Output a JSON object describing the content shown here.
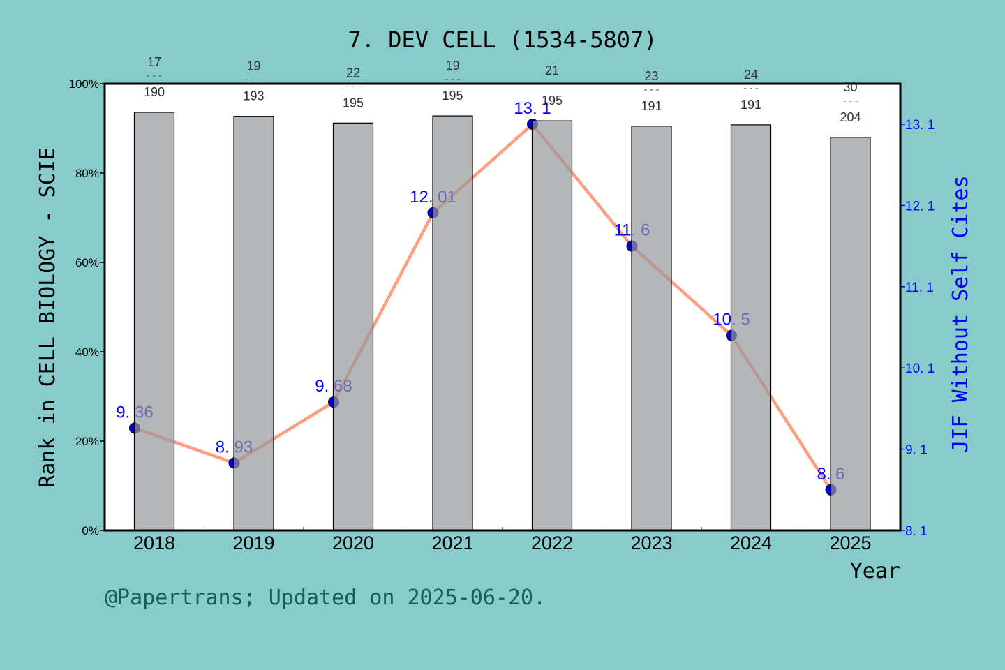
{
  "chart_data": {
    "type": "bar+line",
    "title": "7. DEV CELL (1534-5807)",
    "xlabel": "Year",
    "ylabel_left": "Rank in CELL BIOLOGY - SCIE",
    "ylabel_right": "JIF Without Self Cites",
    "footer": "@Papertrans; Updated on 2025-06-20.",
    "categories": [
      "2018",
      "2019",
      "2020",
      "2021",
      "2022",
      "2023",
      "2024",
      "2025"
    ],
    "left_axis": {
      "ylim": [
        0,
        100
      ],
      "ticks": [
        "0%",
        "20%",
        "40%",
        "60%",
        "80%",
        "100%"
      ]
    },
    "right_axis": {
      "ylim": [
        8.1,
        13.1
      ],
      "ticks": [
        "8. 1",
        "9. 1",
        "10. 1",
        "11. 1",
        "12. 1",
        "13. 1"
      ]
    },
    "bars": {
      "values": [
        93.6,
        92.7,
        91.2,
        92.8,
        91.7,
        90.5,
        90.8,
        88.0
      ],
      "rank": [
        "17",
        "19",
        "22",
        "19",
        "21",
        "23",
        "24",
        "30"
      ],
      "total": [
        "190",
        "193",
        "195",
        "195",
        "195",
        "191",
        "191",
        "204"
      ],
      "color": "#b8b9bb"
    },
    "line": {
      "values": [
        9.36,
        8.93,
        9.68,
        12.01,
        13.1,
        11.6,
        10.5,
        8.6
      ],
      "labels": [
        "9. 36",
        "8. 93",
        "9. 68",
        "12. 01",
        "13. 1",
        "11. 6",
        "10. 5",
        "8. 6"
      ],
      "color": "#ff9f7f",
      "marker_color": "#0000cc"
    },
    "background": "#88cbcb",
    "label_color": "#0000ff",
    "footer_color": "#1a5c5c"
  }
}
